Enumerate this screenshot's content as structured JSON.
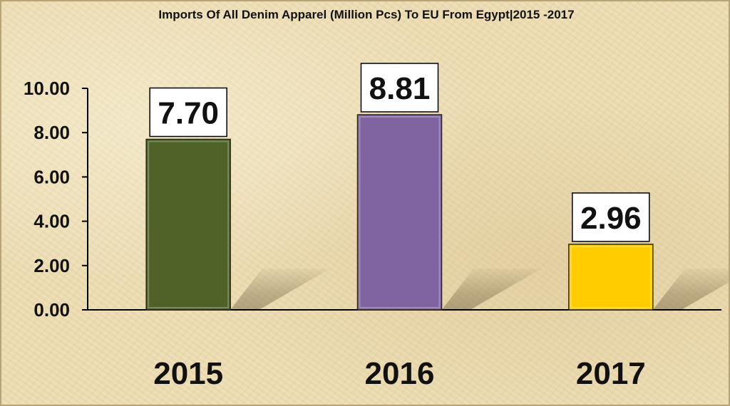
{
  "chart_data": {
    "type": "bar",
    "title": "Imports Of All Denim Apparel (Million Pcs) To EU From Egypt|2015 -2017",
    "xlabel": "",
    "ylabel": "",
    "categories": [
      "2015",
      "2016",
      "2017"
    ],
    "values": [
      7.7,
      8.81,
      2.96
    ],
    "data_labels": [
      "7.70",
      "8.81",
      "2.96"
    ],
    "bar_colors": [
      "#4f6228",
      "#8064a2",
      "#ffcc00"
    ],
    "ylim": [
      0,
      10
    ],
    "yticks": [
      0,
      2,
      4,
      6,
      8,
      10
    ],
    "ytick_labels": [
      "0.00",
      "2.00",
      "4.00",
      "6.00",
      "8.00",
      "10.00"
    ],
    "grid": false,
    "legend": "none"
  }
}
